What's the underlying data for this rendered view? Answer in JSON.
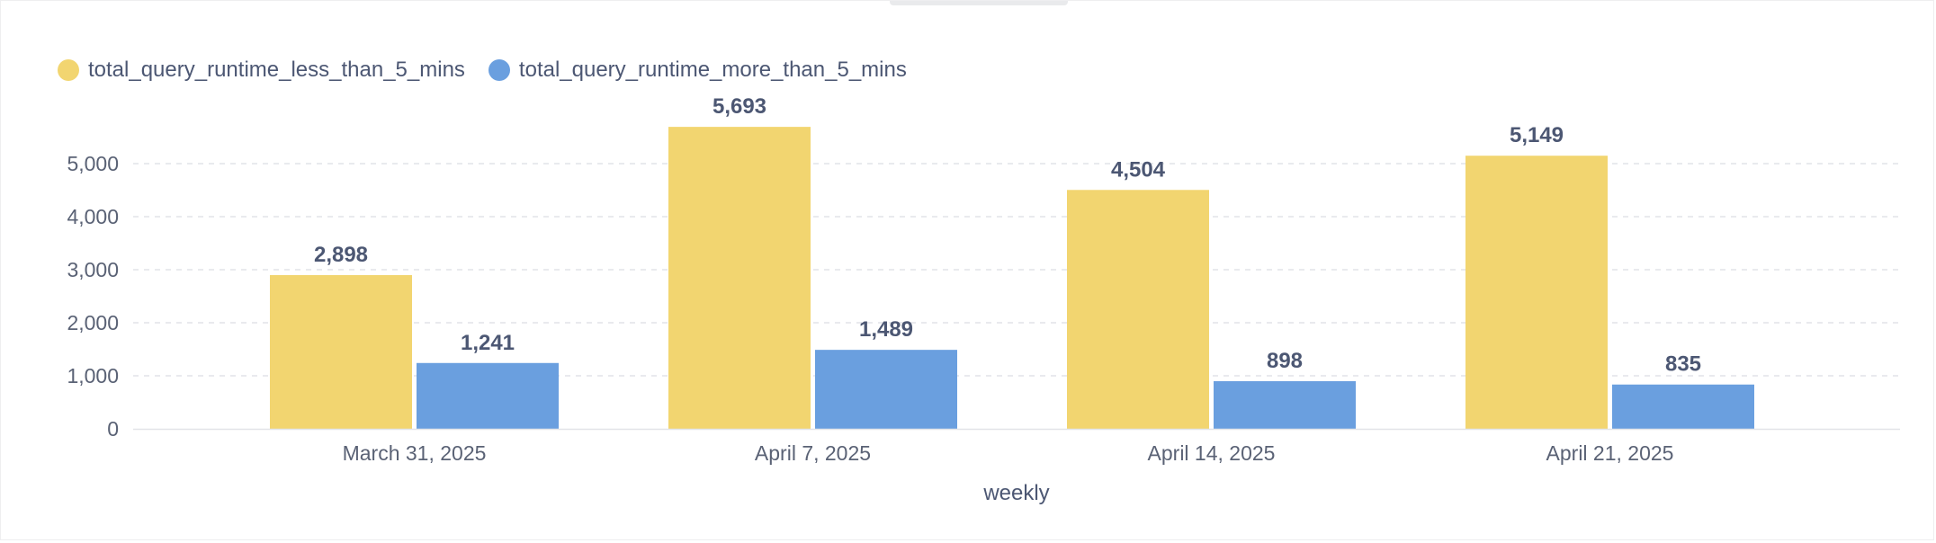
{
  "chart_data": {
    "type": "bar",
    "categories": [
      "March 31, 2025",
      "April 7, 2025",
      "April 14, 2025",
      "April 21, 2025"
    ],
    "series": [
      {
        "name": "total_query_runtime_less_than_5_mins",
        "color": "#f2d570",
        "values": [
          2898,
          5693,
          4504,
          5149
        ],
        "labels": [
          "2,898",
          "5,693",
          "4,504",
          "5,149"
        ]
      },
      {
        "name": "total_query_runtime_more_than_5_mins",
        "color": "#6a9fdf",
        "values": [
          1241,
          1489,
          898,
          835
        ],
        "labels": [
          "1,241",
          "1,489",
          "898",
          "835"
        ]
      }
    ],
    "xlabel": "weekly",
    "ylabel": "",
    "ylim": [
      0,
      5700
    ],
    "yticks": [
      0,
      1000,
      2000,
      3000,
      4000,
      5000
    ],
    "ytick_labels": [
      "0",
      "1,000",
      "2,000",
      "3,000",
      "4,000",
      "5,000"
    ],
    "grid": "horizontal dashed",
    "legend_position": "top-left"
  }
}
